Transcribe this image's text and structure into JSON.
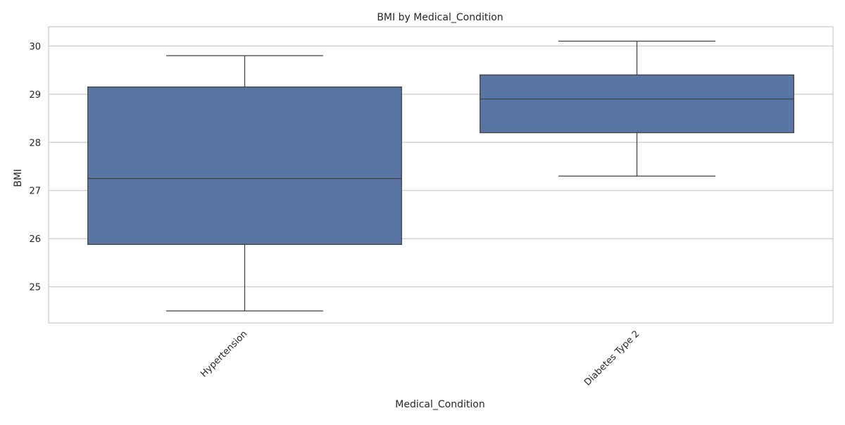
{
  "chart_data": {
    "type": "box",
    "title": "BMI by Medical_Condition",
    "xlabel": "Medical_Condition",
    "ylabel": "BMI",
    "ylim": [
      24.25,
      30.4
    ],
    "yticks": [
      25,
      26,
      27,
      28,
      29,
      30
    ],
    "grid": "y",
    "categories": [
      "Hypertension",
      "Diabetes Type 2"
    ],
    "boxes": [
      {
        "category": "Hypertension",
        "whisker_low": 24.5,
        "q1": 25.88,
        "median": 27.25,
        "q3": 29.15,
        "whisker_high": 29.8
      },
      {
        "category": "Diabetes Type 2",
        "whisker_low": 27.3,
        "q1": 28.2,
        "median": 28.9,
        "q3": 29.4,
        "whisker_high": 30.1
      }
    ],
    "colors": {
      "box_fill": "#5875a4",
      "line": "#3f3f3f",
      "grid": "#cccccc",
      "axes_edge": "#cccccc"
    }
  }
}
